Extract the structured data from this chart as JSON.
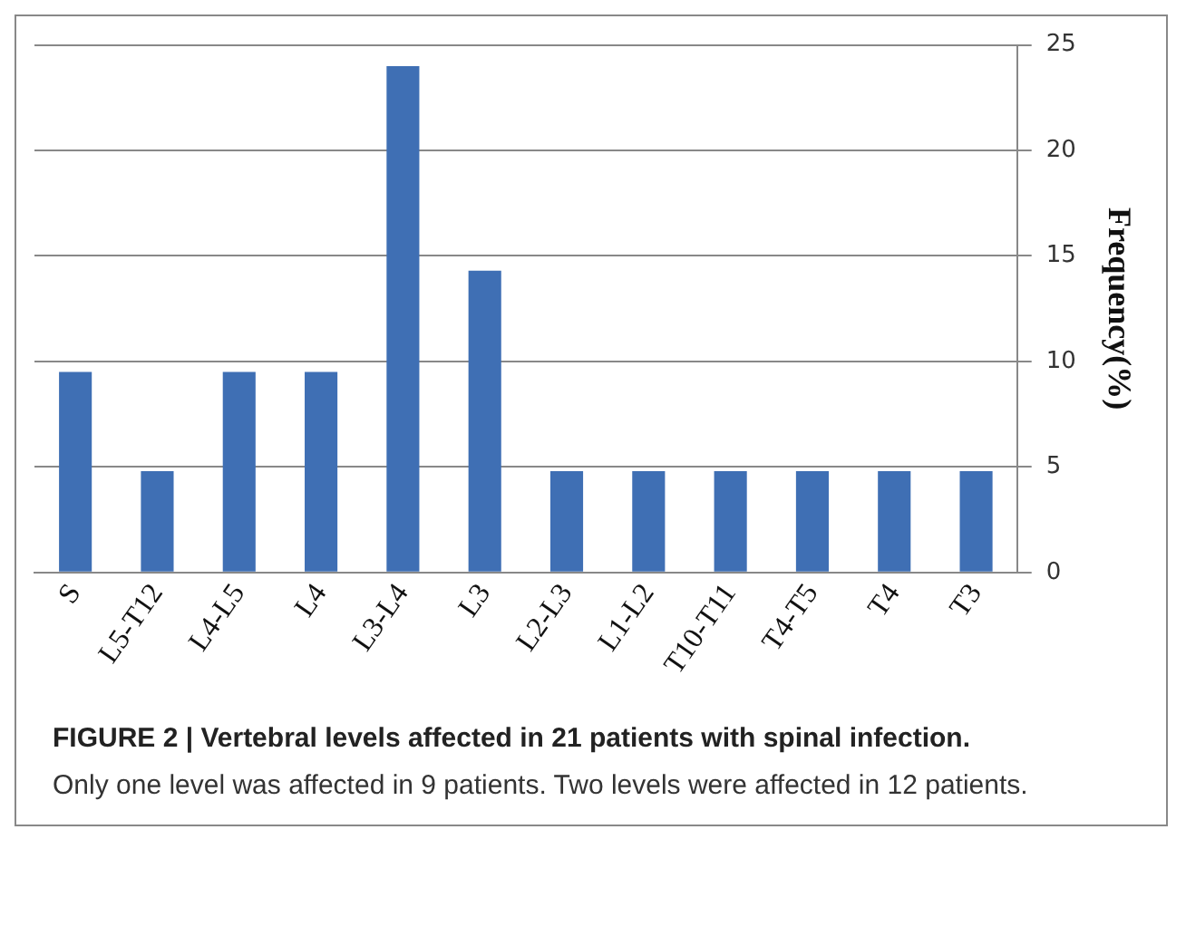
{
  "chart_data": {
    "type": "bar",
    "title": "FIGURE 2 | Vertebral levels affected in 21 patients with spinal infection.",
    "annotations": [
      "Only one level was affected in 9 patients. Two levels were affected in 12 patients."
    ],
    "ylabel": "Frequency(%)",
    "categories": [
      "S",
      "L5-T12",
      "L4-L5",
      "L4",
      "L3-L4",
      "L3",
      "L2-L3",
      "L1-L2",
      "T10-T11",
      "T4-T5",
      "T4",
      "T3"
    ],
    "values": [
      9.5,
      4.8,
      9.5,
      9.5,
      24,
      14.3,
      4.8,
      4.8,
      4.8,
      4.8,
      4.8,
      4.8
    ],
    "color": "#3f6fb4",
    "ylim": [
      0,
      25
    ],
    "yticks": [
      0,
      5,
      10,
      15,
      20,
      25
    ],
    "grid": "y"
  }
}
